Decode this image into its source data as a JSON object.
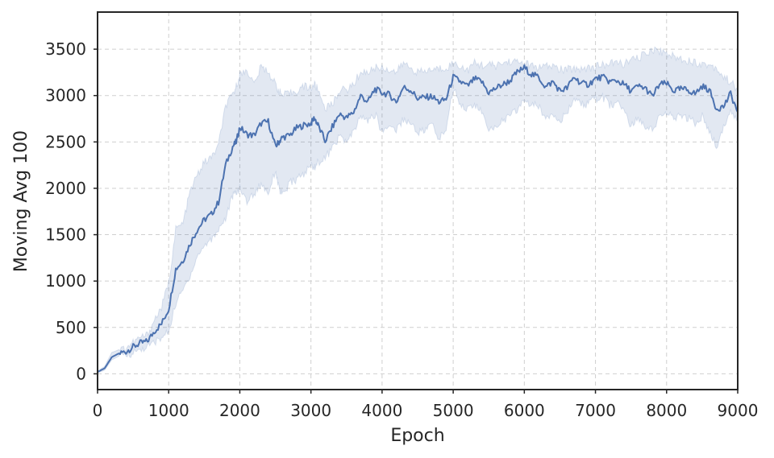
{
  "chart_data": {
    "type": "line",
    "title": "",
    "xlabel": "Epoch",
    "ylabel": "Moving Avg 100",
    "xlim": [
      0,
      9000
    ],
    "ylim": [
      -170,
      3900
    ],
    "xticks": [
      0,
      1000,
      2000,
      3000,
      4000,
      5000,
      6000,
      7000,
      8000,
      9000
    ],
    "yticks": [
      0,
      500,
      1000,
      1500,
      2000,
      2500,
      3000,
      3500
    ],
    "grid": true,
    "legend": "none",
    "colors": {
      "line": "#4c72b0",
      "band": "#4c72b0",
      "grid": "#cfcfcf",
      "frame": "#262626"
    },
    "series": [
      {
        "x": [
          0,
          100,
          200,
          300,
          400,
          500,
          600,
          700,
          800,
          900,
          1000,
          1100,
          1200,
          1300,
          1400,
          1500,
          1600,
          1700,
          1800,
          1900,
          1950,
          2000,
          2100,
          2200,
          2300,
          2400,
          2500,
          2550,
          2600,
          2700,
          2800,
          2900,
          3000,
          3050,
          3100,
          3200,
          3300,
          3400,
          3500,
          3600,
          3700,
          3800,
          3900,
          4000,
          4100,
          4200,
          4300,
          4400,
          4500,
          4600,
          4700,
          4800,
          4900,
          5000,
          5100,
          5200,
          5300,
          5400,
          5500,
          5600,
          5700,
          5800,
          5900,
          6000,
          6100,
          6200,
          6300,
          6400,
          6500,
          6600,
          6700,
          6800,
          6900,
          7000,
          7100,
          7200,
          7300,
          7400,
          7500,
          7600,
          7700,
          7800,
          7900,
          8000,
          8100,
          8200,
          8300,
          8400,
          8500,
          8600,
          8700,
          8800,
          8900,
          9000
        ],
        "y": [
          20,
          60,
          180,
          220,
          240,
          290,
          330,
          350,
          460,
          540,
          700,
          1130,
          1220,
          1400,
          1550,
          1660,
          1720,
          1850,
          2250,
          2450,
          2500,
          2660,
          2580,
          2570,
          2700,
          2720,
          2450,
          2500,
          2550,
          2570,
          2650,
          2680,
          2700,
          2760,
          2680,
          2510,
          2660,
          2800,
          2760,
          2820,
          3000,
          2930,
          3070,
          3030,
          3010,
          2930,
          3090,
          3060,
          2970,
          2980,
          2990,
          2930,
          2960,
          3200,
          3150,
          3100,
          3180,
          3150,
          3030,
          3080,
          3120,
          3160,
          3250,
          3300,
          3230,
          3200,
          3090,
          3150,
          3050,
          3080,
          3200,
          3130,
          3120,
          3180,
          3200,
          3150,
          3160,
          3120,
          3050,
          3100,
          3080,
          2990,
          3120,
          3130,
          3050,
          3070,
          3060,
          3020,
          3100,
          3060,
          2860,
          2880,
          3020,
          2820
        ],
        "lower": [
          10,
          40,
          150,
          190,
          200,
          230,
          260,
          290,
          340,
          380,
          460,
          760,
          900,
          1060,
          1260,
          1380,
          1450,
          1560,
          1680,
          1920,
          1950,
          2000,
          1860,
          1940,
          2050,
          1950,
          2200,
          2000,
          1920,
          2050,
          2100,
          2150,
          2250,
          2230,
          2280,
          2330,
          2430,
          2560,
          2500,
          2600,
          2780,
          2720,
          2800,
          2610,
          2680,
          2630,
          2750,
          2700,
          2610,
          2620,
          2700,
          2520,
          2650,
          3080,
          2920,
          2850,
          2900,
          2830,
          2600,
          2680,
          2730,
          2780,
          2850,
          2950,
          2900,
          2880,
          2760,
          2820,
          2740,
          2790,
          2980,
          2900,
          2910,
          2960,
          2980,
          2900,
          2920,
          2860,
          2660,
          2760,
          2680,
          2640,
          2760,
          2820,
          2740,
          2780,
          2760,
          2700,
          2780,
          2600,
          2450,
          2650,
          2820,
          2760
        ],
        "upper": [
          30,
          80,
          230,
          260,
          280,
          340,
          390,
          420,
          580,
          720,
          980,
          1560,
          1620,
          1960,
          2140,
          2280,
          2330,
          2460,
          2890,
          3000,
          3100,
          3220,
          3280,
          3120,
          3310,
          3260,
          3120,
          3050,
          3000,
          3020,
          3050,
          3100,
          3080,
          3120,
          3060,
          2870,
          2900,
          3060,
          3060,
          3120,
          3260,
          3250,
          3300,
          3300,
          3280,
          3250,
          3350,
          3300,
          3250,
          3260,
          3280,
          3290,
          3300,
          3350,
          3320,
          3270,
          3350,
          3330,
          3330,
          3320,
          3350,
          3370,
          3360,
          3350,
          3320,
          3300,
          3310,
          3320,
          3280,
          3280,
          3290,
          3290,
          3300,
          3310,
          3330,
          3340,
          3360,
          3340,
          3380,
          3400,
          3450,
          3500,
          3480,
          3460,
          3420,
          3400,
          3380,
          3360,
          3340,
          3330,
          3300,
          3200,
          3150,
          3060
        ]
      }
    ]
  }
}
